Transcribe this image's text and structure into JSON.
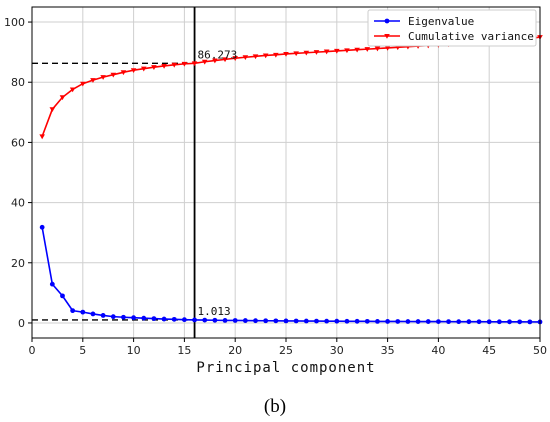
{
  "chart_data": {
    "type": "line",
    "xlabel": "Principal component",
    "caption": "(b)",
    "xlim": [
      0,
      50
    ],
    "ylim": [
      -5,
      105
    ],
    "xticks": [
      0,
      5,
      10,
      15,
      20,
      25,
      30,
      35,
      40,
      45,
      50
    ],
    "yticks": [
      0,
      20,
      40,
      60,
      80,
      100
    ],
    "grid": true,
    "legend_position": "top-right",
    "x": [
      1,
      2,
      3,
      4,
      5,
      6,
      7,
      8,
      9,
      10,
      11,
      12,
      13,
      14,
      15,
      16,
      17,
      18,
      19,
      20,
      21,
      22,
      23,
      24,
      25,
      26,
      27,
      28,
      29,
      30,
      31,
      32,
      33,
      34,
      35,
      36,
      37,
      38,
      39,
      40,
      41,
      42,
      43,
      44,
      45,
      46,
      47,
      48,
      49,
      50
    ],
    "series": [
      {
        "name": "Eigenvalue",
        "color": "#0000ff",
        "values": [
          31.8,
          12.9,
          9.0,
          4.1,
          3.6,
          3.0,
          2.5,
          2.1,
          1.9,
          1.75,
          1.6,
          1.45,
          1.3,
          1.2,
          1.1,
          1.013,
          0.95,
          0.9,
          0.85,
          0.82,
          0.79,
          0.76,
          0.73,
          0.7,
          0.68,
          0.66,
          0.64,
          0.62,
          0.6,
          0.58,
          0.56,
          0.55,
          0.53,
          0.52,
          0.5,
          0.49,
          0.48,
          0.47,
          0.46,
          0.45,
          0.44,
          0.43,
          0.42,
          0.41,
          0.4,
          0.39,
          0.38,
          0.37,
          0.36,
          0.35
        ]
      },
      {
        "name": "Cumulative variance",
        "color": "#ff0000",
        "values": [
          62.0,
          71.0,
          75.0,
          77.6,
          79.5,
          80.7,
          81.7,
          82.5,
          83.3,
          84.0,
          84.5,
          85.0,
          85.4,
          85.8,
          86.1,
          86.273,
          86.8,
          87.2,
          87.6,
          88.0,
          88.3,
          88.6,
          88.9,
          89.1,
          89.4,
          89.6,
          89.8,
          90.0,
          90.2,
          90.4,
          90.6,
          90.8,
          91.0,
          91.2,
          91.4,
          91.6,
          91.8,
          92.0,
          92.2,
          92.4,
          92.6,
          92.8,
          93.0,
          93.2,
          93.4,
          93.6,
          93.8,
          94.0,
          94.5,
          95.0
        ]
      }
    ],
    "annotations": [
      {
        "text": "86.273",
        "x": 16,
        "y": 86.273
      },
      {
        "text": "1.013",
        "x": 16,
        "y": 1.013
      }
    ],
    "reference_lines": {
      "vertical_x": 16,
      "horizontal_y": [
        86.273,
        1.013
      ]
    }
  }
}
